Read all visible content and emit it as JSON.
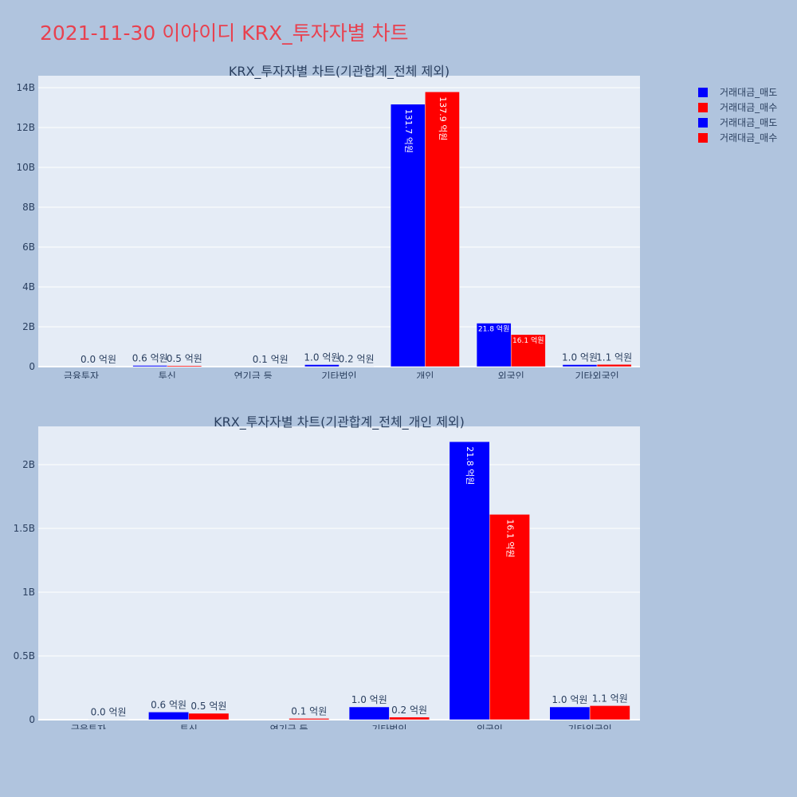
{
  "page_title": "2021-11-30 이아이디 KRX_투자자별 차트",
  "legend": [
    {
      "label": "거래대금_매도",
      "color": "#0000ff"
    },
    {
      "label": "거래대금_매수",
      "color": "#ff0000"
    },
    {
      "label": "거래대금_매도",
      "color": "#0000ff"
    },
    {
      "label": "거래대금_매수",
      "color": "#ff0000"
    }
  ],
  "chart_data": [
    {
      "type": "bar",
      "title": "KRX_투자자별 차트(기관합계_전체 제외)",
      "categories": [
        "금융투자",
        "투신",
        "연기금 등",
        "기타법인",
        "개인",
        "외국인",
        "기타외국인"
      ],
      "ylim": [
        0,
        14.6
      ],
      "yunit": "B",
      "yticks": [
        0,
        2,
        4,
        6,
        8,
        10,
        12,
        14
      ],
      "ytick_labels": [
        "0",
        "2B",
        "4B",
        "6B",
        "8B",
        "10B",
        "12B",
        "14B"
      ],
      "grid": true,
      "legend_position": "top-right",
      "series": [
        {
          "name": "거래대금_매도",
          "color": "#0000ff",
          "values": [
            0,
            0.06,
            0,
            0.1,
            13.17,
            2.18,
            0.1
          ],
          "labels": [
            "",
            "0.6 억원",
            "",
            "1.0 억원",
            "131.7 억원",
            "21.8 억원",
            "1.0 억원"
          ]
        },
        {
          "name": "거래대금_매수",
          "color": "#ff0000",
          "values": [
            0.002,
            0.05,
            0.01,
            0.02,
            13.79,
            1.61,
            0.11
          ],
          "labels": [
            "0.0 억원",
            "0.5 억원",
            "0.1 억원",
            "0.2 억원",
            "137.9 억원",
            "16.1 억원",
            "1.1 억원"
          ]
        }
      ]
    },
    {
      "type": "bar",
      "title": "KRX_투자자별 차트(기관합계_전체_개인 제외)",
      "categories": [
        "금융투자",
        "투신",
        "연기금 등",
        "기타법인",
        "외국인",
        "기타외국인"
      ],
      "ylim": [
        0,
        2.3
      ],
      "yunit": "B",
      "yticks": [
        0,
        0.5,
        1,
        1.5,
        2
      ],
      "ytick_labels": [
        "0",
        "0.5B",
        "1B",
        "1.5B",
        "2B"
      ],
      "grid": true,
      "series": [
        {
          "name": "거래대금_매도",
          "color": "#0000ff",
          "values": [
            0,
            0.06,
            0,
            0.1,
            2.18,
            0.1
          ],
          "labels": [
            "",
            "0.6 억원",
            "",
            "1.0 억원",
            "21.8 억원",
            "1.0 억원"
          ]
        },
        {
          "name": "거래대금_매수",
          "color": "#ff0000",
          "values": [
            0.002,
            0.05,
            0.01,
            0.02,
            1.61,
            0.11
          ],
          "labels": [
            "0.0 억원",
            "0.5 억원",
            "0.1 억원",
            "0.2 억원",
            "16.1 억원",
            "1.1 억원"
          ]
        }
      ]
    }
  ]
}
